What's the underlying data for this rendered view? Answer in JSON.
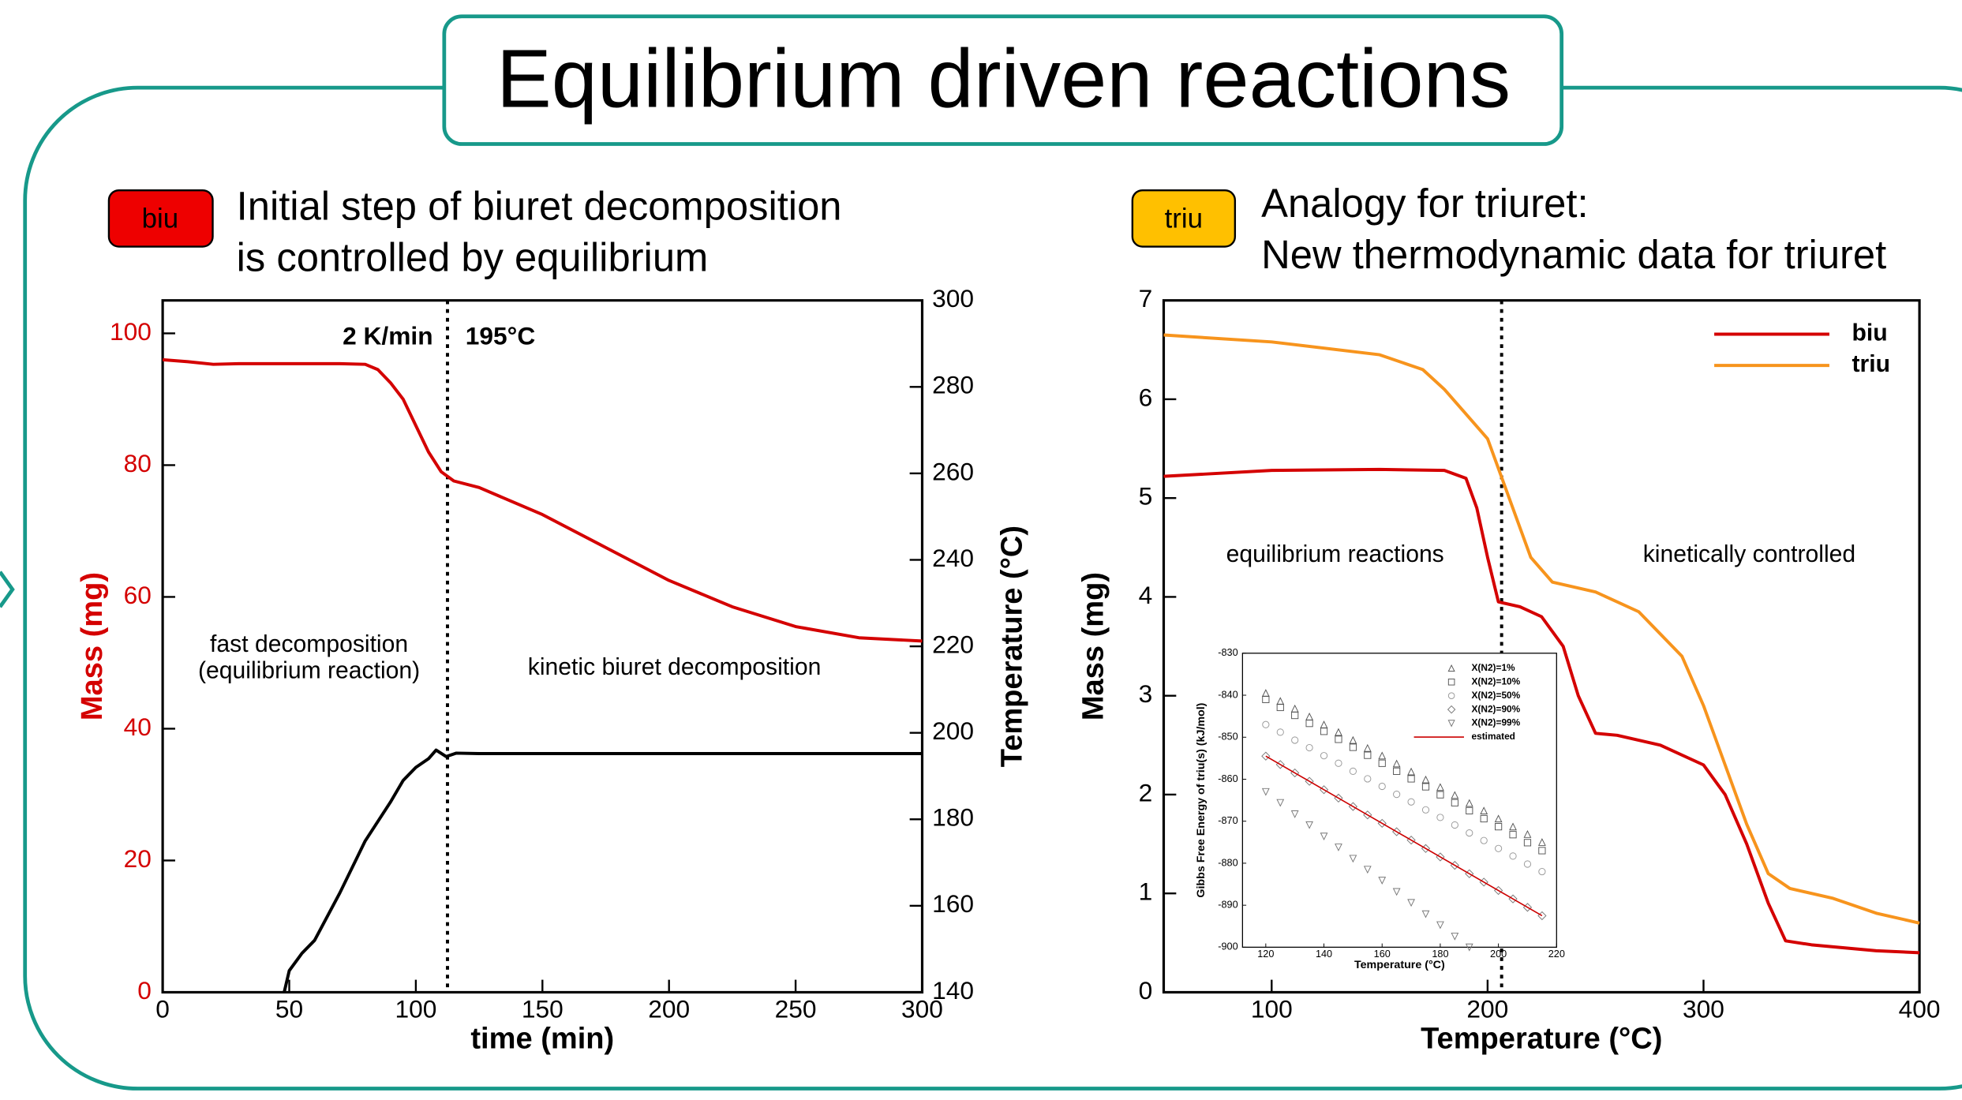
{
  "title": "Equilibrium driven reactions",
  "panels": [
    {
      "badge": "biu",
      "lines": [
        "Initial step of biuret decomposition",
        "is controlled by equilibrium"
      ]
    },
    {
      "badge": "triu",
      "lines": [
        "Analogy for triuret:",
        "New thermodynamic data for triuret"
      ]
    }
  ],
  "chart_data": [
    {
      "type": "line",
      "xlabel": "time (min)",
      "ylabel": "Mass (mg)",
      "y2label": "Temperature (°C)",
      "ylabel_color": "#d40000",
      "xlim": [
        0,
        300
      ],
      "xticks": [
        0,
        50,
        100,
        150,
        200,
        250,
        300
      ],
      "ylim": [
        0,
        105
      ],
      "yticks": [
        0,
        20,
        40,
        60,
        80,
        100
      ],
      "y2lim": [
        140,
        300
      ],
      "y2ticks": [
        140,
        160,
        180,
        200,
        220,
        240,
        260,
        280,
        300
      ],
      "vline": 112.5,
      "annotations": [
        "2 K/min",
        "195°C",
        "fast decomposition",
        "(equilibrium reaction)",
        "kinetic biuret decomposition"
      ],
      "series": [
        {
          "name": "Mass",
          "color": "#d40000",
          "x": [
            0,
            10,
            20,
            30,
            50,
            70,
            80,
            85,
            90,
            95,
            100,
            105,
            110,
            115,
            125,
            150,
            175,
            200,
            225,
            250,
            275,
            300
          ],
          "values": [
            96,
            95.7,
            95.3,
            95.4,
            95.4,
            95.4,
            95.3,
            94.5,
            92.5,
            90,
            86,
            82,
            79,
            77.6,
            76.6,
            72.5,
            67.5,
            62.5,
            58.5,
            55.5,
            53.8,
            53.3
          ]
        },
        {
          "name": "Temperature",
          "color": "#000000",
          "axis": "y2",
          "x": [
            48,
            50,
            55,
            60,
            70,
            80,
            90,
            95,
            100,
            105,
            108,
            112,
            116,
            125,
            300
          ],
          "values": [
            140,
            145,
            149,
            152,
            163,
            175,
            184,
            189,
            192,
            194,
            196,
            194.5,
            195.3,
            195.2,
            195.2
          ]
        }
      ]
    },
    {
      "type": "line",
      "xlabel": "Temperature (°C)",
      "ylabel": "Mass (mg)",
      "xlim": [
        50,
        400
      ],
      "xticks": [
        100,
        200,
        300,
        400
      ],
      "ylim": [
        0,
        7
      ],
      "yticks": [
        0,
        1,
        2,
        3,
        4,
        5,
        6,
        7
      ],
      "vline": 206.5,
      "legend": "upper right",
      "annotations": [
        "equilibrium reactions",
        "kinetically controlled"
      ],
      "series": [
        {
          "name": "biu",
          "color": "#d40000",
          "x": [
            50,
            100,
            150,
            180,
            190,
            195,
            200,
            205,
            215,
            225,
            235,
            242,
            250,
            260,
            280,
            300,
            310,
            320,
            330,
            338,
            350,
            380,
            400
          ],
          "values": [
            5.22,
            5.28,
            5.29,
            5.28,
            5.2,
            4.9,
            4.4,
            3.95,
            3.9,
            3.8,
            3.5,
            3.0,
            2.62,
            2.6,
            2.5,
            2.3,
            2.0,
            1.5,
            0.9,
            0.52,
            0.48,
            0.42,
            0.4
          ]
        },
        {
          "name": "triu",
          "color": "#f7941d",
          "x": [
            50,
            100,
            150,
            170,
            180,
            190,
            200,
            210,
            220,
            230,
            250,
            270,
            290,
            300,
            310,
            320,
            330,
            340,
            360,
            380,
            400
          ],
          "values": [
            6.65,
            6.58,
            6.45,
            6.3,
            6.1,
            5.85,
            5.6,
            5.0,
            4.4,
            4.15,
            4.05,
            3.85,
            3.4,
            2.9,
            2.3,
            1.7,
            1.2,
            1.05,
            0.95,
            0.8,
            0.7
          ]
        }
      ]
    },
    {
      "type": "scatter",
      "xlabel": "Temperature (°C)",
      "ylabel": "Gibbs Free Energy of triu(s) (kJ/mol)",
      "xlim": [
        112,
        220
      ],
      "xticks": [
        120,
        140,
        160,
        180,
        200,
        220
      ],
      "ylim": [
        -900,
        -830
      ],
      "yticks": [
        -830,
        -840,
        -850,
        -860,
        -870,
        -880,
        -890,
        -900
      ],
      "legend": "upper right",
      "series": [
        {
          "name": "X(N2)=1%",
          "color": "#555555",
          "marker": "triangle-up",
          "x": [
            120,
            125,
            130,
            135,
            140,
            145,
            150,
            155,
            160,
            165,
            170,
            175,
            180,
            185,
            190,
            195,
            200,
            205,
            210,
            215
          ],
          "values": [
            -839.5,
            -841.4,
            -843.2,
            -845.1,
            -847.0,
            -848.8,
            -850.7,
            -852.6,
            -854.4,
            -856.3,
            -858.2,
            -860.1,
            -861.9,
            -863.8,
            -865.7,
            -867.5,
            -869.4,
            -871.3,
            -873.1,
            -875.0
          ]
        },
        {
          "name": "X(N2)=10%",
          "color": "#555555",
          "marker": "square",
          "x": [
            120,
            125,
            130,
            135,
            140,
            145,
            150,
            155,
            160,
            165,
            170,
            175,
            180,
            185,
            190,
            195,
            200,
            205,
            210,
            215
          ],
          "values": [
            -841.0,
            -842.9,
            -844.8,
            -846.7,
            -848.6,
            -850.5,
            -852.4,
            -854.3,
            -856.2,
            -858.1,
            -859.9,
            -861.8,
            -863.7,
            -865.6,
            -867.5,
            -869.4,
            -871.3,
            -873.2,
            -875.1,
            -877.0
          ]
        },
        {
          "name": "X(N2)=50%",
          "color": "#999999",
          "marker": "circle",
          "x": [
            120,
            125,
            130,
            135,
            140,
            145,
            150,
            155,
            160,
            165,
            170,
            175,
            180,
            185,
            190,
            195,
            200,
            205,
            210,
            215
          ],
          "values": [
            -847.0,
            -848.8,
            -850.7,
            -852.5,
            -854.4,
            -856.2,
            -858.1,
            -859.9,
            -861.7,
            -863.6,
            -865.4,
            -867.3,
            -869.1,
            -870.9,
            -872.8,
            -874.6,
            -876.5,
            -878.3,
            -880.2,
            -882.0
          ]
        },
        {
          "name": "X(N2)=90%",
          "color": "#777777",
          "marker": "diamond",
          "x": [
            120,
            125,
            130,
            135,
            140,
            145,
            150,
            155,
            160,
            165,
            170,
            175,
            180,
            185,
            190,
            195,
            200,
            205,
            210,
            215
          ],
          "values": [
            -854.5,
            -856.5,
            -858.5,
            -860.5,
            -862.5,
            -864.5,
            -866.5,
            -868.5,
            -870.5,
            -872.5,
            -874.5,
            -876.5,
            -878.5,
            -880.5,
            -882.5,
            -884.5,
            -886.5,
            -888.5,
            -890.5,
            -892.5
          ]
        },
        {
          "name": "X(N2)=99%",
          "color": "#777777",
          "marker": "triangle-down",
          "x": [
            120,
            125,
            130,
            135,
            140,
            145,
            150,
            155,
            160,
            165,
            170,
            175,
            180,
            185,
            190
          ],
          "values": [
            -863.0,
            -865.6,
            -868.3,
            -870.9,
            -873.6,
            -876.2,
            -878.9,
            -881.5,
            -884.1,
            -886.8,
            -889.4,
            -892.1,
            -894.7,
            -897.4,
            -900.0
          ]
        },
        {
          "name": "estimated",
          "color": "#cc0000",
          "x": [
            120,
            215
          ],
          "values": [
            -854.5,
            -892.5
          ]
        }
      ]
    }
  ]
}
